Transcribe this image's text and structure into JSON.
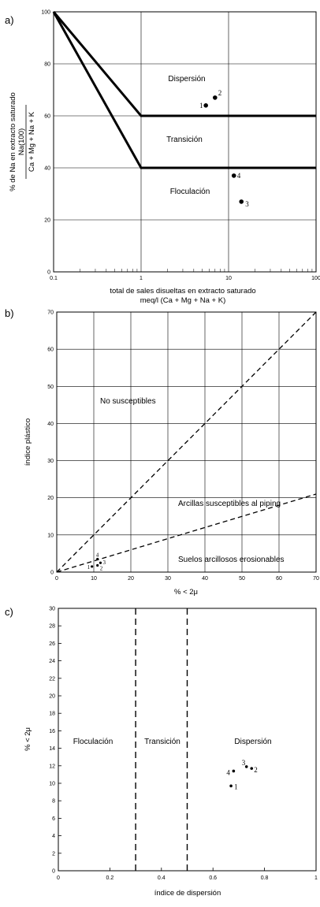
{
  "chart_data": [
    {
      "panel_label": "a)",
      "type": "scatter",
      "x_scale": "log",
      "xlim": [
        0.1,
        100
      ],
      "ylim": [
        0,
        100
      ],
      "x_ticks": [
        "0.1",
        "1",
        "10",
        "100"
      ],
      "y_ticks": [
        "0",
        "20",
        "40",
        "60",
        "80",
        "100"
      ],
      "xlabel": [
        "total de sales disueltas en extracto saturado",
        "meq/l (Ca + Mg + Na + K)"
      ],
      "ylabel": [
        "% de Na en extracto saturado",
        "Na(100)",
        "Ca + Mg + Na + K"
      ],
      "regions": [
        "Dispersión",
        "Transición",
        "Floculación"
      ],
      "boundaries": [
        {
          "x": [
            0.1,
            1,
            100
          ],
          "y": [
            100,
            60,
            60
          ]
        },
        {
          "x": [
            0.1,
            1,
            100
          ],
          "y": [
            100,
            40,
            40
          ]
        }
      ],
      "points": [
        {
          "label": "1",
          "x": 5.5,
          "y": 64
        },
        {
          "label": "2",
          "x": 7,
          "y": 67
        },
        {
          "label": "3",
          "x": 14,
          "y": 27
        },
        {
          "label": "4",
          "x": 11.5,
          "y": 37
        }
      ]
    },
    {
      "panel_label": "b)",
      "type": "scatter",
      "xlim": [
        0,
        70
      ],
      "ylim": [
        0,
        70
      ],
      "x_ticks": [
        "0",
        "10",
        "20",
        "30",
        "40",
        "50",
        "60",
        "70"
      ],
      "y_ticks": [
        "0",
        "10",
        "20",
        "30",
        "40",
        "50",
        "60",
        "70"
      ],
      "xlabel": "% < 2μ",
      "ylabel": "índice plástico",
      "regions": [
        "No susceptibles",
        "Arcillas susceptibles al piping",
        "Suelos arcillosos erosionables"
      ],
      "lines": [
        {
          "x": [
            0,
            70
          ],
          "y": [
            0,
            70
          ]
        },
        {
          "x": [
            0,
            70
          ],
          "y": [
            0,
            21
          ]
        }
      ],
      "points": [
        {
          "label": "1",
          "x": 9.5,
          "y": 1.5
        },
        {
          "label": "2",
          "x": 11,
          "y": 1.8
        },
        {
          "label": "3",
          "x": 11.8,
          "y": 2.5
        },
        {
          "label": "4",
          "x": 11,
          "y": 3.5
        }
      ]
    },
    {
      "panel_label": "c)",
      "type": "scatter",
      "xlim": [
        0,
        1
      ],
      "ylim": [
        0,
        30
      ],
      "x_ticks": [
        "0",
        "0.2",
        "0.4",
        "0.6",
        "0.8",
        "1"
      ],
      "y_ticks": [
        "0",
        "2",
        "4",
        "6",
        "8",
        "10",
        "12",
        "14",
        "16",
        "18",
        "20",
        "22",
        "24",
        "26",
        "28",
        "30"
      ],
      "xlabel": "índice de dispersión",
      "ylabel": "% < 2μ",
      "regions": [
        "Floculación",
        "Transición",
        "Dispersión"
      ],
      "boundaries_x": [
        0.3,
        0.5
      ],
      "points": [
        {
          "label": "1",
          "x": 0.67,
          "y": 9.7
        },
        {
          "label": "2",
          "x": 0.75,
          "y": 11.7
        },
        {
          "label": "3",
          "x": 0.73,
          "y": 11.9
        },
        {
          "label": "4",
          "x": 0.68,
          "y": 11.4
        }
      ]
    }
  ]
}
